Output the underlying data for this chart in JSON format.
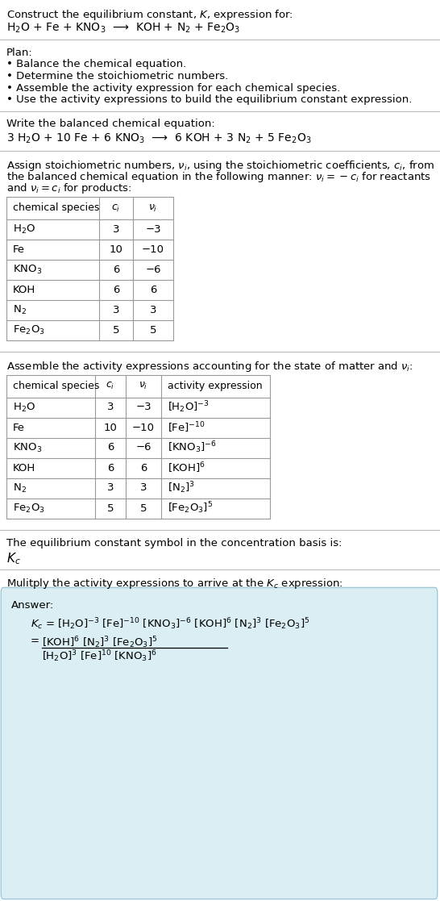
{
  "title_text": "Construct the equilibrium constant, $K$, expression for:",
  "reaction_unbalanced": "H$_2$O + Fe + KNO$_3$  ⟶  KOH + N$_2$ + Fe$_2$O$_3$",
  "plan_header": "Plan:",
  "plan_items": [
    "• Balance the chemical equation.",
    "• Determine the stoichiometric numbers.",
    "• Assemble the activity expression for each chemical species.",
    "• Use the activity expressions to build the equilibrium constant expression."
  ],
  "balanced_header": "Write the balanced chemical equation:",
  "reaction_balanced": "3 H$_2$O + 10 Fe + 6 KNO$_3$  ⟶  6 KOH + 3 N$_2$ + 5 Fe$_2$O$_3$",
  "stoich_header_line1": "Assign stoichiometric numbers, $\\nu_i$, using the stoichiometric coefficients, $c_i$, from",
  "stoich_header_line2": "the balanced chemical equation in the following manner: $\\nu_i = -c_i$ for reactants",
  "stoich_header_line3": "and $\\nu_i = c_i$ for products:",
  "table1_cols": [
    "chemical species",
    "$c_i$",
    "$\\nu_i$"
  ],
  "table1_rows": [
    [
      "H$_2$O",
      "3",
      "−3"
    ],
    [
      "Fe",
      "10",
      "−10"
    ],
    [
      "KNO$_3$",
      "6",
      "−6"
    ],
    [
      "KOH",
      "6",
      "6"
    ],
    [
      "N$_2$",
      "3",
      "3"
    ],
    [
      "Fe$_2$O$_3$",
      "5",
      "5"
    ]
  ],
  "activity_header": "Assemble the activity expressions accounting for the state of matter and $\\nu_i$:",
  "table2_cols": [
    "chemical species",
    "$c_i$",
    "$\\nu_i$",
    "activity expression"
  ],
  "table2_rows": [
    [
      "H$_2$O",
      "3",
      "−3",
      "[H$_2$O]$^{-3}$"
    ],
    [
      "Fe",
      "10",
      "−10",
      "[Fe]$^{-10}$"
    ],
    [
      "KNO$_3$",
      "6",
      "−6",
      "[KNO$_3$]$^{-6}$"
    ],
    [
      "KOH",
      "6",
      "6",
      "[KOH]$^6$"
    ],
    [
      "N$_2$",
      "3",
      "3",
      "[N$_2$]$^3$"
    ],
    [
      "Fe$_2$O$_3$",
      "5",
      "5",
      "[Fe$_2$O$_3$]$^5$"
    ]
  ],
  "kc_symbol_header": "The equilibrium constant symbol in the concentration basis is:",
  "kc_symbol": "$K_c$",
  "multiply_header": "Mulitply the activity expressions to arrive at the $K_c$ expression:",
  "answer_label": "Answer:",
  "kc_line1": "$K_c$ = [H$_2$O]$^{-3}$ [Fe]$^{-10}$ [KNO$_3$]$^{-6}$ [KOH]$^6$ [N$_2$]$^3$ [Fe$_2$O$_3$]$^5$",
  "kc_eq_symbol": "=",
  "kc_numerator": "[KOH]$^6$ [N$_2$]$^3$ [Fe$_2$O$_3$]$^5$",
  "kc_denominator": "[H$_2$O]$^3$ [Fe]$^{10}$ [KNO$_3$]$^6$",
  "bg_color": "#ffffff",
  "answer_box_color": "#daeef3",
  "text_color": "#000000",
  "sep_line_color": "#bbbbbb",
  "table_border_color": "#999999",
  "font_size": 9.5
}
